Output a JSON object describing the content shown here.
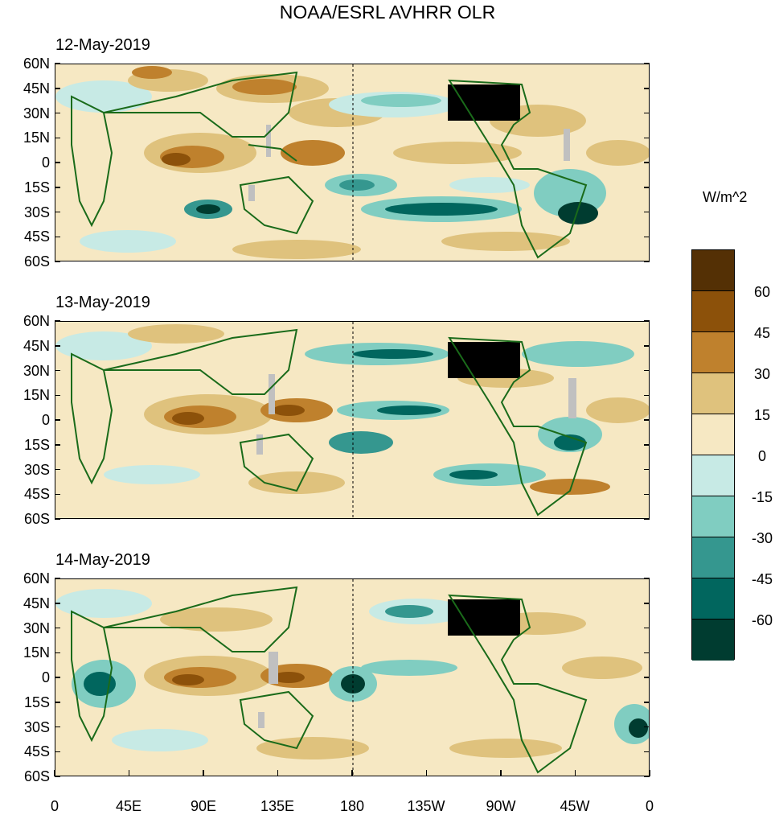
{
  "title": "NOAA/ESRL AVHRR OLR",
  "panels": [
    {
      "date": "12-May-2019"
    },
    {
      "date": "13-May-2019"
    },
    {
      "date": "14-May-2019"
    }
  ],
  "y_axis": {
    "labels": [
      "60N",
      "45N",
      "30N",
      "15N",
      "0",
      "15S",
      "30S",
      "45S",
      "60S"
    ]
  },
  "x_axis": {
    "labels": [
      "0",
      "45E",
      "90E",
      "135E",
      "180",
      "135W",
      "90W",
      "45W",
      "0"
    ]
  },
  "colorbar": {
    "units": "W/m^2",
    "levels": [
      "60",
      "45",
      "30",
      "15",
      "0",
      "-15",
      "-30",
      "-45",
      "-60"
    ],
    "colors": [
      "#543005",
      "#8c510a",
      "#bf812d",
      "#dfc27d",
      "#f6e8c3",
      "#c7eae5",
      "#80cdc1",
      "#35978f",
      "#01665e",
      "#003c30"
    ]
  },
  "colors": {
    "coastline": "#1a6b1a",
    "missing": "#c0c0c0",
    "usa_grid": "#000000"
  }
}
